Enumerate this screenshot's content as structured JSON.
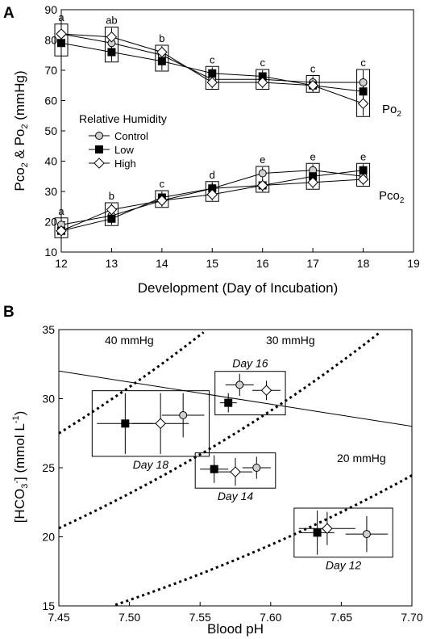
{
  "chart_data": [
    {
      "panel": "A",
      "type": "line",
      "xlabel": "Development (Day of  Incubation)",
      "ylabel": "Pco2 & Po2 (mmHg)",
      "xlim": [
        12,
        19
      ],
      "ylim": [
        10,
        90
      ],
      "xticks": [
        12,
        13,
        14,
        15,
        16,
        17,
        18,
        19
      ],
      "yticks": [
        10,
        20,
        30,
        40,
        50,
        60,
        70,
        80,
        90
      ],
      "legend_title": "Relative Humidity",
      "legend_position": "center-left",
      "series_labels": {
        "po2": "Po2",
        "pco2": "Pco2"
      },
      "x": [
        12,
        13,
        14,
        15,
        16,
        17,
        18
      ],
      "po2_letters": [
        "a",
        "ab",
        "b",
        "c",
        "c",
        "c",
        "c"
      ],
      "pco2_letters": [
        "a",
        "b",
        "c",
        "d",
        "e",
        "e",
        "e"
      ],
      "series": [
        {
          "name": "Control",
          "marker": "circle",
          "po2": [
            82,
            79,
            75,
            67,
            67,
            66,
            66
          ],
          "po2_err": [
            3,
            3,
            2,
            2,
            2,
            2,
            4
          ],
          "pco2": [
            19,
            22,
            27,
            31,
            36,
            37,
            35
          ],
          "pco2_err": [
            2,
            2,
            2,
            2,
            2,
            2,
            2
          ]
        },
        {
          "name": "Low",
          "marker": "square",
          "po2": [
            79,
            76,
            73,
            69,
            68,
            65,
            63
          ],
          "po2_err": [
            4,
            3,
            3,
            2,
            2,
            2,
            3
          ],
          "pco2": [
            17,
            21,
            28,
            31,
            32,
            35,
            37
          ],
          "pco2_err": [
            2,
            2,
            2,
            2,
            2,
            2,
            2
          ]
        },
        {
          "name": "High",
          "marker": "diamond",
          "po2": [
            82,
            81,
            76,
            66,
            66,
            65,
            59
          ],
          "po2_err": [
            3,
            3,
            2,
            2,
            2,
            2,
            4
          ],
          "pco2": [
            17,
            24,
            27,
            29,
            32,
            33,
            34
          ],
          "pco2_err": [
            2,
            2,
            2,
            2,
            2,
            2,
            2
          ]
        }
      ]
    },
    {
      "panel": "B",
      "type": "scatter",
      "xlabel": "Blood pH",
      "ylabel": "[HCO3-] (mmol L-1)",
      "xlim": [
        7.45,
        7.7
      ],
      "ylim": [
        15,
        35
      ],
      "xticks": [
        7.45,
        7.5,
        7.55,
        7.6,
        7.65,
        7.7
      ],
      "yticks": [
        15,
        20,
        25,
        30,
        35
      ],
      "isopleths": [
        {
          "label": "40 mmHg",
          "pco2": 40
        },
        {
          "label": "30 mmHg",
          "pco2": 30
        },
        {
          "label": "20 mmHg",
          "pco2": 20
        }
      ],
      "buffer_line": [
        [
          7.45,
          32.0
        ],
        [
          7.7,
          28.0
        ]
      ],
      "groups": [
        {
          "label": "Day 12",
          "points": [
            {
              "series": "Low",
              "ph": 7.633,
              "hco3": 20.3,
              "ph_err": 0.012,
              "hco3_err": 1.6
            },
            {
              "series": "High",
              "ph": 7.64,
              "hco3": 20.6,
              "ph_err": 0.02,
              "hco3_err": 1.2
            },
            {
              "series": "Control",
              "ph": 7.668,
              "hco3": 20.2,
              "ph_err": 0.015,
              "hco3_err": 1.3
            }
          ]
        },
        {
          "label": "Day 14",
          "points": [
            {
              "series": "Low",
              "ph": 7.56,
              "hco3": 24.9,
              "ph_err": 0.01,
              "hco3_err": 1.0
            },
            {
              "series": "High",
              "ph": 7.575,
              "hco3": 24.7,
              "ph_err": 0.012,
              "hco3_err": 1.0
            },
            {
              "series": "Control",
              "ph": 7.59,
              "hco3": 25.0,
              "ph_err": 0.01,
              "hco3_err": 0.8
            }
          ]
        },
        {
          "label": "Day 16",
          "points": [
            {
              "series": "Low",
              "ph": 7.57,
              "hco3": 29.7,
              "ph_err": 0.006,
              "hco3_err": 0.7
            },
            {
              "series": "Control",
              "ph": 7.578,
              "hco3": 31.0,
              "ph_err": 0.01,
              "hco3_err": 0.8
            },
            {
              "series": "High",
              "ph": 7.597,
              "hco3": 30.6,
              "ph_err": 0.01,
              "hco3_err": 0.7
            }
          ]
        },
        {
          "label": "Day 18",
          "points": [
            {
              "series": "Low",
              "ph": 7.497,
              "hco3": 28.2,
              "ph_err": 0.02,
              "hco3_err": 2.2
            },
            {
              "series": "High",
              "ph": 7.522,
              "hco3": 28.2,
              "ph_err": 0.02,
              "hco3_err": 2.2
            },
            {
              "series": "Control",
              "ph": 7.538,
              "hco3": 28.8,
              "ph_err": 0.015,
              "hco3_err": 1.6
            }
          ]
        }
      ]
    }
  ],
  "panel_labels": {
    "a": "A",
    "b": "B"
  }
}
